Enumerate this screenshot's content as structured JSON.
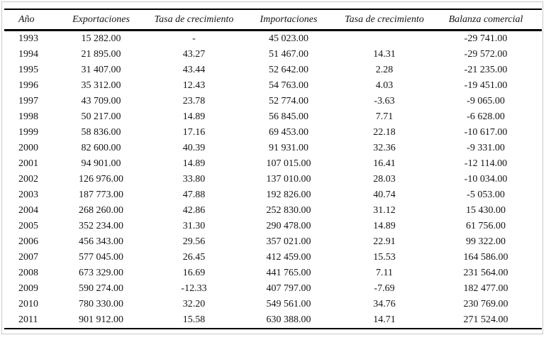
{
  "table": {
    "columns": [
      "Año",
      "Exportaciones",
      "Tasa de crecimiento",
      "Importaciones",
      "Tasa de crecimiento",
      "Balanza comercial"
    ],
    "rows": [
      [
        "1993",
        "15 282.00",
        "-",
        "45 023.00",
        "",
        "-29 741.00"
      ],
      [
        "1994",
        "21 895.00",
        "43.27",
        "51 467.00",
        "14.31",
        "-29 572.00"
      ],
      [
        "1995",
        "31 407.00",
        "43.44",
        "52 642.00",
        "2.28",
        "-21 235.00"
      ],
      [
        "1996",
        "35 312.00",
        "12.43",
        "54 763.00",
        "4.03",
        "-19 451.00"
      ],
      [
        "1997",
        "43 709.00",
        "23.78",
        "52 774.00",
        "-3.63",
        "-9 065.00"
      ],
      [
        "1998",
        "50 217.00",
        "14.89",
        "56 845.00",
        "7.71",
        "-6 628.00"
      ],
      [
        "1999",
        "58 836.00",
        "17.16",
        "69 453.00",
        "22.18",
        "-10 617.00"
      ],
      [
        "2000",
        "82 600.00",
        "40.39",
        "91 931.00",
        "32.36",
        "-9 331.00"
      ],
      [
        "2001",
        "94 901.00",
        "14.89",
        "107 015.00",
        "16.41",
        "-12 114.00"
      ],
      [
        "2002",
        "126 976.00",
        "33.80",
        "137 010.00",
        "28.03",
        "-10 034.00"
      ],
      [
        "2003",
        "187 773.00",
        "47.88",
        "192 826.00",
        "40.74",
        "-5 053.00"
      ],
      [
        "2004",
        "268 260.00",
        "42.86",
        "252 830.00",
        "31.12",
        "15 430.00"
      ],
      [
        "2005",
        "352 234.00",
        "31.30",
        "290 478.00",
        "14.89",
        "61 756.00"
      ],
      [
        "2006",
        "456 343.00",
        "29.56",
        "357 021.00",
        "22.91",
        "99 322.00"
      ],
      [
        "2007",
        "577 045.00",
        "26.45",
        "412 459.00",
        "15.53",
        "164 586.00"
      ],
      [
        "2008",
        "673 329.00",
        "16.69",
        "441 765.00",
        "7.11",
        "231 564.00"
      ],
      [
        "2009",
        "590 274.00",
        "-12.33",
        "407 797.00",
        "-7.69",
        "182 477.00"
      ],
      [
        "2010",
        "780 330.00",
        "32.20",
        "549 561.00",
        "34.76",
        "230 769.00"
      ],
      [
        "2011",
        "901 912.00",
        "15.58",
        "630 388.00",
        "14.71",
        "271 524.00"
      ]
    ]
  }
}
